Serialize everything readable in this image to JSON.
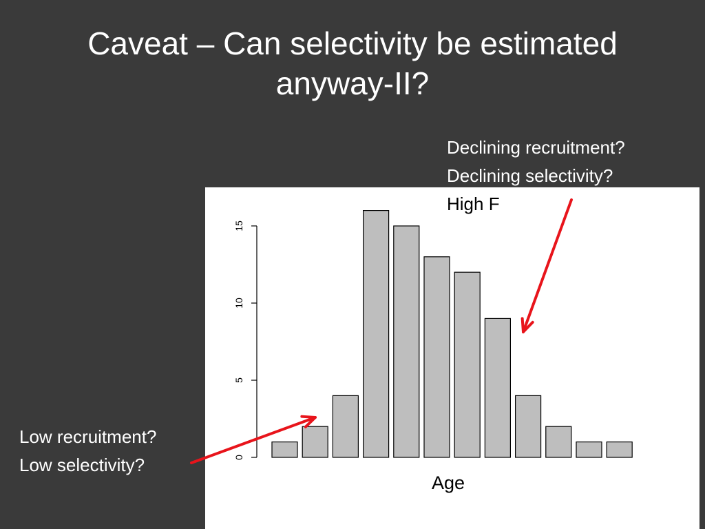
{
  "slide": {
    "title_lines": [
      "Caveat – Can selectivity be estimated",
      "anyway-II?"
    ]
  },
  "annotations": {
    "right": {
      "lines": [
        "Declining recruitment?",
        "Declining selectivity?",
        "High F"
      ]
    },
    "left": {
      "lines": [
        "Low recruitment?",
        "Low selectivity?"
      ]
    }
  },
  "arrow_color": "#e8141b",
  "chart_data": {
    "type": "bar",
    "values": [
      1,
      2,
      4,
      16,
      15,
      13,
      12,
      9,
      4,
      2,
      1,
      1
    ],
    "xlabel": "Age",
    "ylabel": "",
    "ylim": [
      0,
      16
    ],
    "y_ticks": [
      0,
      5,
      10,
      15
    ],
    "bar_color": "#bebebe",
    "grid": false
  }
}
